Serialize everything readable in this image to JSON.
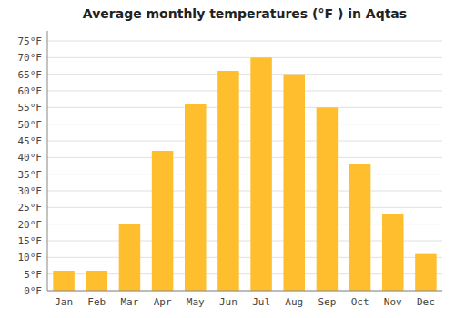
{
  "chart_data": {
    "type": "bar",
    "title": "Average monthly temperatures (°F ) in Aqtas",
    "categories": [
      "Jan",
      "Feb",
      "Mar",
      "Apr",
      "May",
      "Jun",
      "Jul",
      "Aug",
      "Sep",
      "Oct",
      "Nov",
      "Dec"
    ],
    "values": [
      6,
      6,
      20,
      42,
      56,
      66,
      70,
      65,
      55,
      38,
      23,
      11
    ],
    "color": "#FFBE2D",
    "ylim": [
      0,
      78
    ],
    "yticks": [
      {
        "value": 0,
        "label": "0°F"
      },
      {
        "value": 5,
        "label": "5°F"
      },
      {
        "value": 10,
        "label": "10°F"
      },
      {
        "value": 15,
        "label": "15°F"
      },
      {
        "value": 20,
        "label": "20°F"
      },
      {
        "value": 25,
        "label": "25°F"
      },
      {
        "value": 30,
        "label": "30°F"
      },
      {
        "value": 35,
        "label": "35°F"
      },
      {
        "value": 40,
        "label": "40°F"
      },
      {
        "value": 45,
        "label": "45°F"
      },
      {
        "value": 50,
        "label": "50°F"
      },
      {
        "value": 55,
        "label": "55°F"
      },
      {
        "value": 60,
        "label": "60°F"
      },
      {
        "value": 65,
        "label": "65°F"
      },
      {
        "value": 70,
        "label": "70°F"
      },
      {
        "value": 75,
        "label": "75°F"
      }
    ],
    "grid": true
  }
}
